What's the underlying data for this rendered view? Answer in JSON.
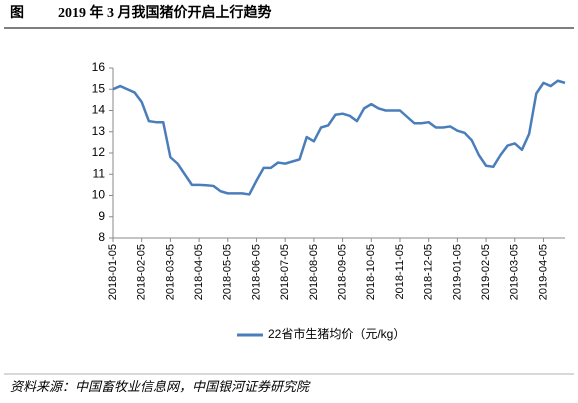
{
  "header": {
    "label": "图",
    "title": "2019 年 3 月我国猪价开启上行趋势"
  },
  "chart_data": {
    "type": "line",
    "categories": [
      "2018-01-05",
      null,
      null,
      null,
      "2018-02-05",
      null,
      null,
      null,
      "2018-03-05",
      null,
      null,
      null,
      "2018-04-05",
      null,
      null,
      null,
      "2018-05-05",
      null,
      null,
      null,
      "2018-06-05",
      null,
      null,
      null,
      "2018-07-05",
      null,
      null,
      null,
      "2018-08-05",
      null,
      null,
      null,
      "2018-09-05",
      null,
      null,
      null,
      "2018-10-05",
      null,
      null,
      null,
      "2018-11-05",
      null,
      null,
      null,
      "2018-12-05",
      null,
      null,
      null,
      "2019-01-05",
      null,
      null,
      null,
      "2019-02-05",
      null,
      null,
      null,
      "2019-03-05",
      null,
      null,
      null,
      "2019-04-05",
      null,
      null,
      null
    ],
    "series": [
      {
        "name": "22省市生猪均价（元/kg）",
        "color": "#4a7ebb",
        "values": [
          15.0,
          15.15,
          15.0,
          14.85,
          14.4,
          13.5,
          13.45,
          13.45,
          11.8,
          11.5,
          11.0,
          10.5,
          10.5,
          10.48,
          10.45,
          10.2,
          10.1,
          10.1,
          10.1,
          10.05,
          10.7,
          11.3,
          11.3,
          11.55,
          11.5,
          11.6,
          11.7,
          12.75,
          12.55,
          13.2,
          13.3,
          13.8,
          13.85,
          13.75,
          13.5,
          14.1,
          14.3,
          14.1,
          14.0,
          14.0,
          14.0,
          13.7,
          13.4,
          13.4,
          13.45,
          13.2,
          13.2,
          13.25,
          13.05,
          12.95,
          12.6,
          11.9,
          11.4,
          11.35,
          11.9,
          12.35,
          12.45,
          12.15,
          12.9,
          14.8,
          15.3,
          15.15,
          15.4,
          15.3
        ]
      }
    ],
    "ylim": [
      8,
      16
    ],
    "yticks": [
      8,
      9,
      10,
      11,
      12,
      13,
      14,
      15,
      16
    ]
  },
  "source": "资料来源：中国畜牧业信息网，中国银河证券研究院"
}
